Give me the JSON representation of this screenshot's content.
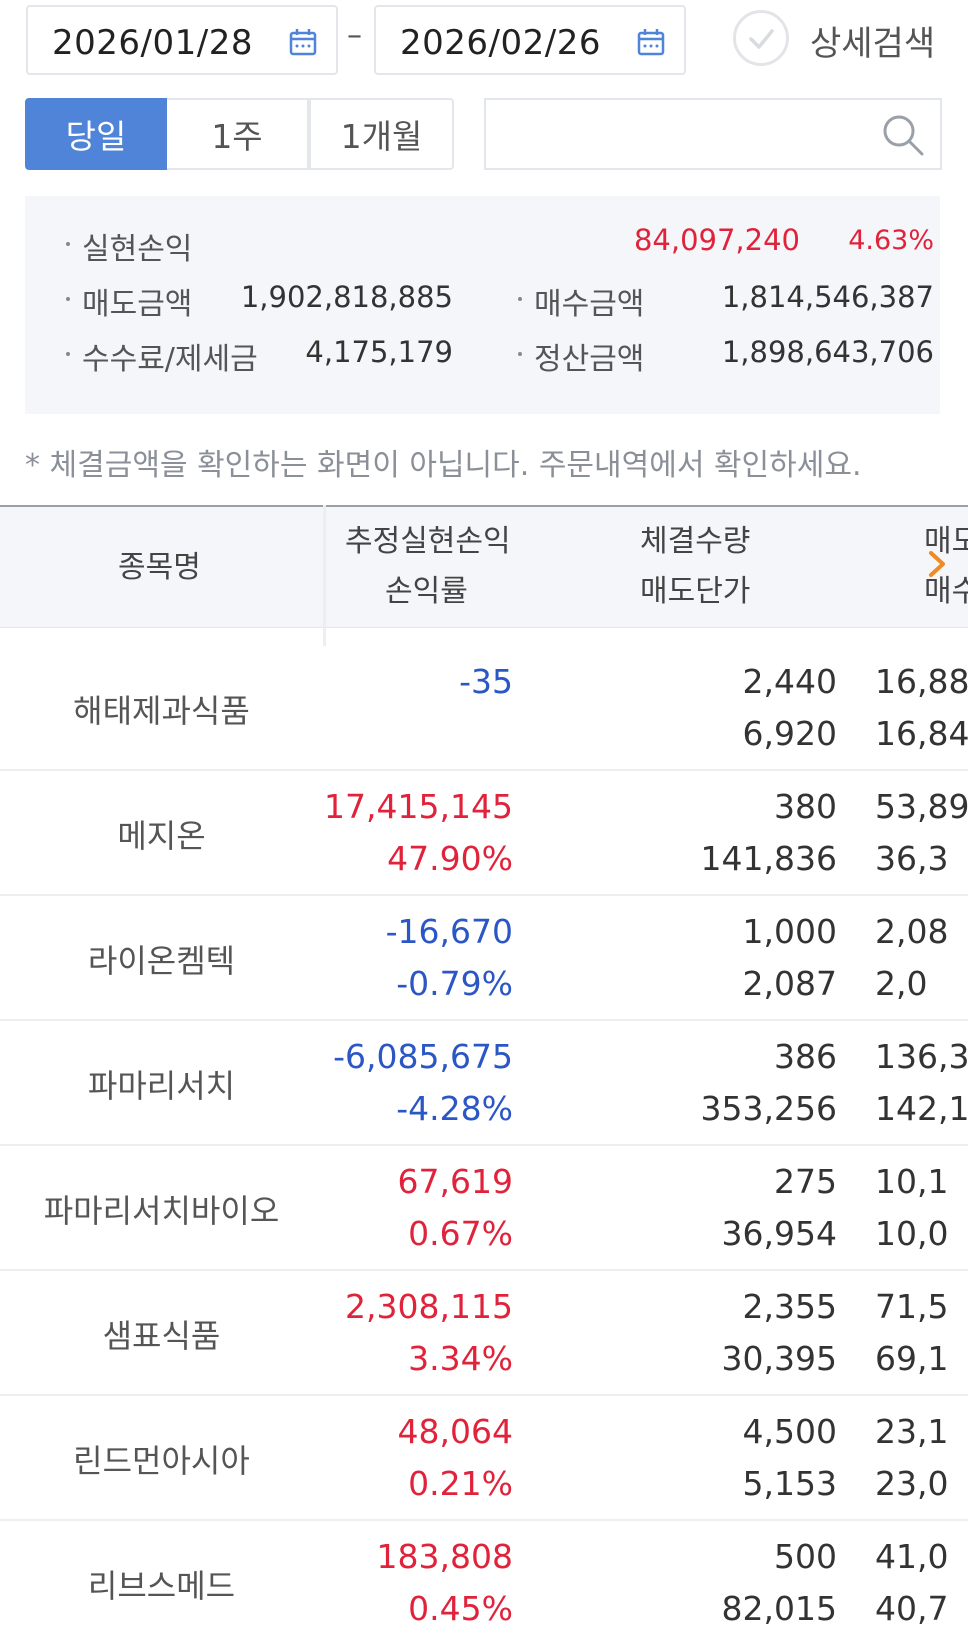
{
  "filter": {
    "date_from": "2026/01/28",
    "date_to": "2026/02/26",
    "date_separator": "–",
    "detail_search_label": "상세검색",
    "periods": [
      "당일",
      "1주",
      "1개월"
    ],
    "selected_period": "당일",
    "search_value": ""
  },
  "summary": {
    "realized_pnl_label": "실현손익",
    "realized_pnl": "84,097,240",
    "realized_pnl_rate": "4.63%",
    "sell_amount_label": "매도금액",
    "sell_amount": "1,902,818,885",
    "buy_amount_label": "매수금액",
    "buy_amount": "1,814,546,387",
    "fee_tax_label": "수수료/제세금",
    "fee_tax": "4,175,179",
    "settle_amount_label": "정산금액",
    "settle_amount": "1,898,643,706"
  },
  "notice": "* 체결금액을 확인하는 화면이 아닙니다. 주문내역에서 확인하세요.",
  "table": {
    "headers": {
      "name": "종목명",
      "pnl": "추정실현손익",
      "pnl_rate": "손익률",
      "qty": "체결수량",
      "sell_price": "매도단가",
      "amt1": "매도",
      "amt2": "매수"
    },
    "rows": [
      {
        "name": "해태제과식품",
        "pnl": "-35",
        "rate": "",
        "sign": "neg",
        "qty": "2,440",
        "price": "6,920",
        "a1": "16,88",
        "a2": "16,84"
      },
      {
        "name": "메지온",
        "pnl": "17,415,145",
        "rate": "47.90%",
        "sign": "pos",
        "qty": "380",
        "price": "141,836",
        "a1": "53,89",
        "a2": "36,3"
      },
      {
        "name": "라이온켐텍",
        "pnl": "-16,670",
        "rate": "-0.79%",
        "sign": "neg",
        "qty": "1,000",
        "price": "2,087",
        "a1": "2,08",
        "a2": "2,0"
      },
      {
        "name": "파마리서치",
        "pnl": "-6,085,675",
        "rate": "-4.28%",
        "sign": "neg",
        "qty": "386",
        "price": "353,256",
        "a1": "136,3",
        "a2": "142,1"
      },
      {
        "name": "파마리서치바이오",
        "pnl": "67,619",
        "rate": "0.67%",
        "sign": "pos",
        "qty": "275",
        "price": "36,954",
        "a1": "10,1",
        "a2": "10,0"
      },
      {
        "name": "샘표식품",
        "pnl": "2,308,115",
        "rate": "3.34%",
        "sign": "pos",
        "qty": "2,355",
        "price": "30,395",
        "a1": "71,5",
        "a2": "69,1"
      },
      {
        "name": "린드먼아시아",
        "pnl": "48,064",
        "rate": "0.21%",
        "sign": "pos",
        "qty": "4,500",
        "price": "5,153",
        "a1": "23,1",
        "a2": "23,0"
      },
      {
        "name": "리브스메드",
        "pnl": "183,808",
        "rate": "0.45%",
        "sign": "pos",
        "qty": "500",
        "price": "82,015",
        "a1": "41,0",
        "a2": "40,7"
      }
    ]
  },
  "colors": {
    "positive": "#e0233b",
    "negative": "#2a56c6",
    "accent": "#4f84d8",
    "chevron": "#f08a24"
  }
}
